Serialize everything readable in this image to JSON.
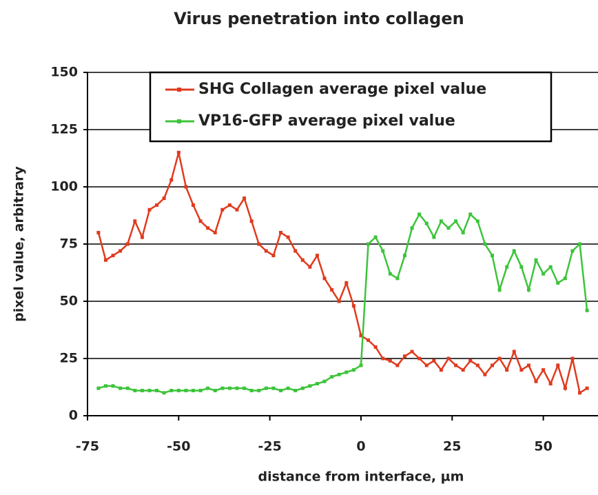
{
  "chart_data": {
    "type": "line",
    "title": "Virus penetration into collagen",
    "x_label": "distance from interface, µm",
    "y_label": "pixel value, arbitrary",
    "x": [
      -72,
      -70,
      -68,
      -66,
      -64,
      -62,
      -60,
      -58,
      -56,
      -54,
      -52,
      -50,
      -48,
      -46,
      -44,
      -42,
      -40,
      -38,
      -36,
      -34,
      -32,
      -30,
      -28,
      -26,
      -24,
      -22,
      -20,
      -18,
      -16,
      -14,
      -12,
      -10,
      -8,
      -6,
      -4,
      -2,
      0,
      2,
      4,
      6,
      8,
      10,
      12,
      14,
      16,
      18,
      20,
      22,
      24,
      26,
      28,
      30,
      32,
      34,
      36,
      38,
      40,
      42,
      44,
      46,
      48,
      50,
      52,
      54,
      56,
      58,
      60,
      62
    ],
    "series": [
      {
        "name": "SHG Collagen average pixel value",
        "color": "#e03a1e",
        "values": [
          80,
          68,
          70,
          72,
          75,
          85,
          78,
          90,
          92,
          95,
          103,
          115,
          100,
          92,
          85,
          82,
          80,
          90,
          92,
          90,
          95,
          85,
          75,
          72,
          70,
          80,
          78,
          72,
          68,
          65,
          70,
          60,
          55,
          50,
          58,
          48,
          35,
          33,
          30,
          25,
          24,
          22,
          26,
          28,
          25,
          22,
          24,
          20,
          25,
          22,
          20,
          24,
          22,
          18,
          22,
          25,
          20,
          28,
          20,
          22,
          15,
          20,
          14,
          22,
          12,
          25,
          10,
          12
        ]
      },
      {
        "name": "VP16-GFP average pixel value",
        "color": "#3cc43a",
        "values": [
          12,
          13,
          13,
          12,
          12,
          11,
          11,
          11,
          11,
          10,
          11,
          11,
          11,
          11,
          11,
          12,
          11,
          12,
          12,
          12,
          12,
          11,
          11,
          12,
          12,
          11,
          12,
          11,
          12,
          13,
          14,
          15,
          17,
          18,
          19,
          20,
          22,
          75,
          78,
          72,
          62,
          60,
          70,
          82,
          88,
          84,
          78,
          85,
          82,
          85,
          80,
          88,
          85,
          75,
          70,
          55,
          65,
          72,
          65,
          55,
          68,
          62,
          65,
          58,
          60,
          72,
          75,
          46
        ]
      }
    ],
    "xlim": [
      -75,
      65
    ],
    "ylim": [
      0,
      150
    ],
    "xticks": [
      -75,
      -50,
      -25,
      0,
      25,
      50
    ],
    "yticks": [
      0,
      25,
      50,
      75,
      100,
      125,
      150
    ],
    "grid": true
  }
}
